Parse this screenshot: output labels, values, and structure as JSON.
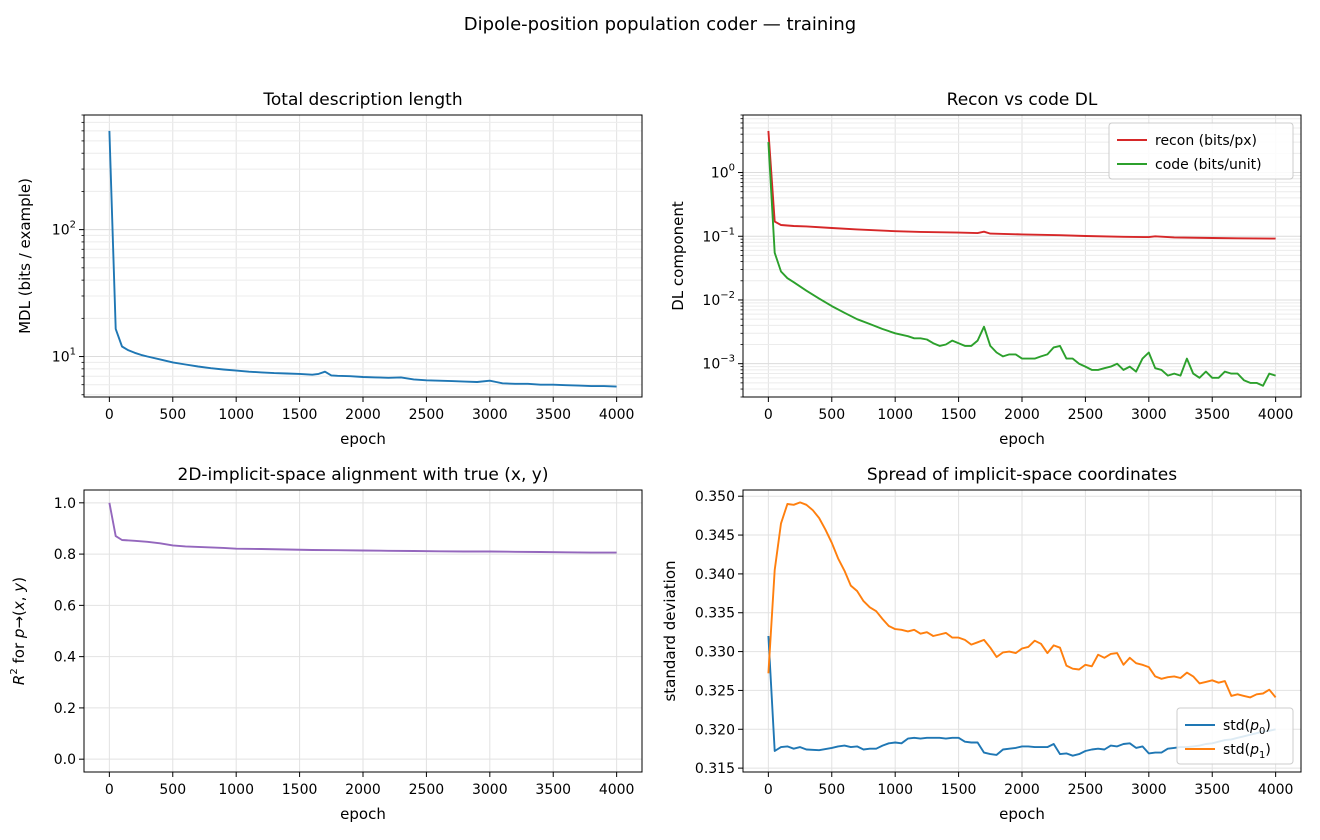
{
  "figure": {
    "title": "Dipole-position population coder — training"
  },
  "chart_data": [
    {
      "id": "mdl",
      "type": "line",
      "title": "Total description length",
      "xlabel": "epoch",
      "ylabel": "MDL (bits / example)",
      "xlim": [
        -200,
        4200
      ],
      "ylim": [
        4.8,
        800
      ],
      "yscale": "log",
      "grid": "both",
      "xticks": [
        0,
        500,
        1000,
        1500,
        2000,
        2500,
        3000,
        3500,
        4000
      ],
      "yticks": [
        {
          "v": 10,
          "base": "10",
          "exp": "1"
        },
        {
          "v": 100,
          "base": "10",
          "exp": "2"
        }
      ],
      "legend": null,
      "series": [
        {
          "name": "",
          "color": "#1f77b4",
          "x": [
            0,
            50,
            100,
            150,
            200,
            250,
            300,
            400,
            500,
            600,
            700,
            800,
            900,
            1000,
            1100,
            1200,
            1300,
            1400,
            1500,
            1600,
            1650,
            1700,
            1750,
            1800,
            1900,
            2000,
            2100,
            2200,
            2300,
            2400,
            2500,
            2600,
            2700,
            2800,
            2900,
            3000,
            3050,
            3100,
            3200,
            3300,
            3400,
            3500,
            3600,
            3700,
            3800,
            3900,
            4000
          ],
          "y": [
            600,
            16.5,
            12.0,
            11.2,
            10.7,
            10.3,
            10.0,
            9.5,
            9.0,
            8.65,
            8.35,
            8.1,
            7.9,
            7.75,
            7.6,
            7.5,
            7.4,
            7.35,
            7.3,
            7.2,
            7.3,
            7.6,
            7.1,
            7.05,
            7.0,
            6.9,
            6.85,
            6.8,
            6.85,
            6.6,
            6.5,
            6.45,
            6.4,
            6.35,
            6.3,
            6.45,
            6.3,
            6.15,
            6.1,
            6.1,
            6.0,
            6.0,
            5.95,
            5.9,
            5.85,
            5.85,
            5.8
          ]
        }
      ]
    },
    {
      "id": "dl",
      "type": "line",
      "title": "Recon vs code DL",
      "xlabel": "epoch",
      "ylabel": "DL component",
      "xlim": [
        -200,
        4200
      ],
      "ylim": [
        0.0003,
        8
      ],
      "yscale": "log",
      "grid": "both",
      "xticks": [
        0,
        500,
        1000,
        1500,
        2000,
        2500,
        3000,
        3500,
        4000
      ],
      "yticks": [
        {
          "v": 1,
          "base": "10",
          "exp": "0"
        },
        {
          "v": 0.1,
          "base": "10",
          "exp": "−1"
        },
        {
          "v": 0.01,
          "base": "10",
          "exp": "−2"
        },
        {
          "v": 0.001,
          "base": "10",
          "exp": "−3"
        }
      ],
      "legend": "top-right",
      "series": [
        {
          "name": "recon (bits/px)",
          "color": "#d62728",
          "x": [
            0,
            50,
            100,
            200,
            300,
            500,
            700,
            1000,
            1200,
            1500,
            1650,
            1700,
            1750,
            2000,
            2300,
            2500,
            2800,
            3000,
            3050,
            3200,
            3500,
            3700,
            4000
          ],
          "y": [
            4.5,
            0.17,
            0.15,
            0.145,
            0.143,
            0.135,
            0.128,
            0.12,
            0.117,
            0.114,
            0.112,
            0.118,
            0.11,
            0.107,
            0.104,
            0.101,
            0.098,
            0.097,
            0.1,
            0.096,
            0.094,
            0.093,
            0.092
          ]
        },
        {
          "name": "code (bits/unit)",
          "color": "#2ca02c",
          "x": [
            0,
            50,
            100,
            150,
            200,
            300,
            400,
            500,
            600,
            700,
            800,
            900,
            1000,
            1100,
            1150,
            1200,
            1250,
            1300,
            1350,
            1400,
            1450,
            1500,
            1550,
            1600,
            1650,
            1700,
            1750,
            1800,
            1850,
            1900,
            1950,
            2000,
            2050,
            2100,
            2150,
            2200,
            2250,
            2300,
            2350,
            2400,
            2450,
            2500,
            2550,
            2600,
            2650,
            2700,
            2750,
            2800,
            2850,
            2900,
            2950,
            3000,
            3050,
            3100,
            3150,
            3200,
            3250,
            3300,
            3350,
            3400,
            3450,
            3500,
            3550,
            3600,
            3650,
            3700,
            3750,
            3800,
            3850,
            3900,
            3950,
            4000
          ],
          "y": [
            3.0,
            0.055,
            0.028,
            0.022,
            0.019,
            0.014,
            0.0105,
            0.008,
            0.0063,
            0.005,
            0.0042,
            0.0035,
            0.003,
            0.0027,
            0.0025,
            0.0025,
            0.0024,
            0.0021,
            0.0019,
            0.002,
            0.0023,
            0.0021,
            0.0019,
            0.0019,
            0.0023,
            0.0038,
            0.0019,
            0.0015,
            0.0013,
            0.0014,
            0.0014,
            0.0012,
            0.0012,
            0.0012,
            0.0013,
            0.0014,
            0.0018,
            0.0019,
            0.0012,
            0.0012,
            0.001,
            0.0009,
            0.0008,
            0.0008,
            0.00085,
            0.0009,
            0.001,
            0.0008,
            0.0009,
            0.00075,
            0.0012,
            0.0015,
            0.00085,
            0.0008,
            0.00065,
            0.0007,
            0.00065,
            0.0012,
            0.0007,
            0.0006,
            0.00075,
            0.0006,
            0.0006,
            0.00075,
            0.0007,
            0.0007,
            0.00055,
            0.0005,
            0.0005,
            0.00045,
            0.0007,
            0.00065
          ]
        }
      ]
    },
    {
      "id": "r2",
      "type": "line",
      "title": "2D-implicit-space alignment with true (x, y)",
      "xlabel": "epoch",
      "ylabel": "R² for p→(x, y)",
      "xlim": [
        -200,
        4200
      ],
      "ylim": [
        -0.05,
        1.05
      ],
      "yscale": "linear",
      "grid": "both",
      "xticks": [
        0,
        500,
        1000,
        1500,
        2000,
        2500,
        3000,
        3500,
        4000
      ],
      "yticks": [
        0.0,
        0.2,
        0.4,
        0.6,
        0.8,
        1.0
      ],
      "legend": null,
      "series": [
        {
          "name": "",
          "color": "#9467bd",
          "x": [
            0,
            50,
            100,
            200,
            300,
            400,
            500,
            600,
            700,
            800,
            900,
            1000,
            1200,
            1400,
            1600,
            1800,
            2000,
            2200,
            2400,
            2600,
            2800,
            3000,
            3200,
            3400,
            3600,
            3800,
            4000
          ],
          "y": [
            1.0,
            0.87,
            0.855,
            0.852,
            0.848,
            0.842,
            0.834,
            0.83,
            0.828,
            0.826,
            0.824,
            0.821,
            0.82,
            0.818,
            0.816,
            0.815,
            0.814,
            0.813,
            0.812,
            0.811,
            0.81,
            0.81,
            0.809,
            0.808,
            0.807,
            0.806,
            0.806
          ]
        }
      ]
    },
    {
      "id": "spread",
      "type": "line",
      "title": "Spread of implicit-space coordinates",
      "xlabel": "epoch",
      "ylabel": "standard deviation",
      "xlim": [
        -200,
        4200
      ],
      "ylim": [
        0.3145,
        0.3508
      ],
      "yscale": "linear",
      "grid": "both",
      "xticks": [
        0,
        500,
        1000,
        1500,
        2000,
        2500,
        3000,
        3500,
        4000
      ],
      "yticks": [
        0.315,
        0.32,
        0.325,
        0.33,
        0.335,
        0.34,
        0.345,
        0.35
      ],
      "legend": "bottom-right",
      "series": [
        {
          "name": "std(p₀)",
          "label_base": "std(",
          "label_sym": "p",
          "label_sub": "0",
          "label_end": ")",
          "color": "#1f77b4",
          "x": [
            0,
            50,
            100,
            150,
            200,
            250,
            300,
            400,
            500,
            550,
            600,
            650,
            700,
            750,
            800,
            850,
            900,
            950,
            1000,
            1050,
            1100,
            1150,
            1200,
            1250,
            1300,
            1350,
            1400,
            1450,
            1500,
            1550,
            1600,
            1650,
            1700,
            1750,
            1800,
            1850,
            1900,
            1950,
            2000,
            2050,
            2100,
            2150,
            2200,
            2250,
            2300,
            2350,
            2400,
            2450,
            2500,
            2550,
            2600,
            2650,
            2700,
            2750,
            2800,
            2850,
            2900,
            2950,
            3000,
            3050,
            3100,
            3150,
            3200,
            3250,
            3300,
            3350,
            3400,
            3450,
            3500,
            3550,
            3600,
            3650,
            3700,
            3750,
            3800,
            3850,
            3900,
            3950,
            4000
          ],
          "y": [
            0.332,
            0.3172,
            0.3177,
            0.3178,
            0.3175,
            0.3177,
            0.3174,
            0.3173,
            0.3176,
            0.3178,
            0.3179,
            0.3177,
            0.3178,
            0.3174,
            0.3175,
            0.3175,
            0.3179,
            0.3182,
            0.3183,
            0.3182,
            0.3188,
            0.3189,
            0.3188,
            0.3189,
            0.3189,
            0.3189,
            0.3188,
            0.3189,
            0.3189,
            0.3184,
            0.3183,
            0.3183,
            0.317,
            0.3168,
            0.3167,
            0.3174,
            0.3175,
            0.3176,
            0.3178,
            0.3178,
            0.3177,
            0.3177,
            0.3177,
            0.3181,
            0.3168,
            0.3169,
            0.3166,
            0.3168,
            0.3172,
            0.3174,
            0.3175,
            0.3174,
            0.3179,
            0.3178,
            0.3181,
            0.3182,
            0.3176,
            0.3178,
            0.3169,
            0.317,
            0.317,
            0.3175,
            0.3176,
            0.3177,
            0.3177,
            0.3178,
            0.3179,
            0.3181,
            0.3182,
            0.3184,
            0.3186,
            0.3187,
            0.3189,
            0.3191,
            0.3193,
            0.3195,
            0.3197,
            0.3198,
            0.32
          ]
        },
        {
          "name": "std(p₁)",
          "label_base": "std(",
          "label_sym": "p",
          "label_sub": "1",
          "label_end": ")",
          "color": "#ff7f0e",
          "x": [
            0,
            50,
            100,
            150,
            200,
            250,
            300,
            350,
            400,
            450,
            500,
            550,
            600,
            650,
            700,
            750,
            800,
            850,
            900,
            950,
            1000,
            1050,
            1100,
            1150,
            1200,
            1250,
            1300,
            1350,
            1400,
            1450,
            1500,
            1550,
            1600,
            1650,
            1700,
            1750,
            1800,
            1850,
            1900,
            1950,
            2000,
            2050,
            2100,
            2150,
            2200,
            2250,
            2300,
            2350,
            2400,
            2450,
            2500,
            2550,
            2600,
            2650,
            2700,
            2750,
            2800,
            2850,
            2900,
            2950,
            3000,
            3050,
            3100,
            3150,
            3200,
            3250,
            3300,
            3350,
            3400,
            3450,
            3500,
            3550,
            3600,
            3650,
            3700,
            3750,
            3800,
            3850,
            3900,
            3950,
            4000
          ],
          "y": [
            0.3272,
            0.3405,
            0.3465,
            0.349,
            0.3489,
            0.3492,
            0.3489,
            0.3482,
            0.3472,
            0.3457,
            0.344,
            0.342,
            0.3404,
            0.3385,
            0.3378,
            0.3365,
            0.3357,
            0.3352,
            0.3342,
            0.3333,
            0.3329,
            0.3328,
            0.3326,
            0.3328,
            0.3323,
            0.3325,
            0.332,
            0.3322,
            0.3324,
            0.3318,
            0.3318,
            0.3315,
            0.3309,
            0.3312,
            0.3315,
            0.3305,
            0.3293,
            0.3299,
            0.33,
            0.3298,
            0.3304,
            0.3306,
            0.3314,
            0.331,
            0.3298,
            0.3308,
            0.3305,
            0.3282,
            0.3278,
            0.3277,
            0.3283,
            0.3281,
            0.3296,
            0.3292,
            0.3297,
            0.3298,
            0.3283,
            0.3292,
            0.3285,
            0.3283,
            0.328,
            0.3268,
            0.3265,
            0.3267,
            0.3268,
            0.3266,
            0.3273,
            0.3268,
            0.3259,
            0.3261,
            0.3263,
            0.326,
            0.3262,
            0.3243,
            0.3245,
            0.3243,
            0.3241,
            0.3245,
            0.3246,
            0.3251,
            0.3241
          ]
        }
      ]
    }
  ]
}
